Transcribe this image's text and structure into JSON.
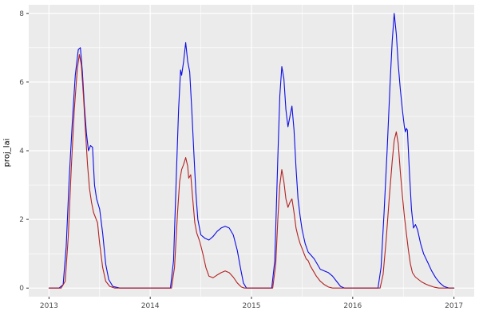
{
  "figure": {
    "kind": "ggplot-style time series plot",
    "background": "#FFFFFF"
  },
  "chart_data": {
    "type": "line",
    "title": "",
    "xlabel": "",
    "ylabel": "proj_lai",
    "xlim": [
      2012.8,
      2017.2
    ],
    "ylim": [
      -0.25,
      8.25
    ],
    "x_ticks": [
      2013,
      2014,
      2015,
      2016,
      2017
    ],
    "x_tick_labels": [
      "2013",
      "2014",
      "2015",
      "2016",
      "2017"
    ],
    "x_minor": [
      2013.5,
      2014.5,
      2015.5,
      2016.5
    ],
    "y_ticks": [
      0,
      2,
      4,
      6,
      8
    ],
    "y_tick_labels": [
      "0",
      "2",
      "4",
      "6",
      "8"
    ],
    "y_minor": [
      1,
      3,
      5,
      7
    ],
    "grid": true,
    "legend": "none",
    "theme": {
      "panel_bg": "#EBEBEB",
      "grid_color": "#FFFFFF",
      "tick_label_color": "#4D4D4D",
      "tick_mark_color": "#333333",
      "axis_title_color": "#000000"
    },
    "series": [
      {
        "name": "blue-series",
        "color": "#0B0BE6",
        "points": [
          [
            2013.0,
            0
          ],
          [
            2013.1,
            0
          ],
          [
            2013.14,
            0.1
          ],
          [
            2013.17,
            1.2
          ],
          [
            2013.2,
            3.2
          ],
          [
            2013.23,
            4.8
          ],
          [
            2013.26,
            6.2
          ],
          [
            2013.29,
            6.95
          ],
          [
            2013.31,
            7.0
          ],
          [
            2013.33,
            6.3
          ],
          [
            2013.35,
            5.3
          ],
          [
            2013.37,
            4.5
          ],
          [
            2013.39,
            4.0
          ],
          [
            2013.41,
            4.15
          ],
          [
            2013.43,
            4.1
          ],
          [
            2013.45,
            3.0
          ],
          [
            2013.47,
            2.6
          ],
          [
            2013.5,
            2.3
          ],
          [
            2013.53,
            1.6
          ],
          [
            2013.56,
            0.7
          ],
          [
            2013.59,
            0.25
          ],
          [
            2013.63,
            0.05
          ],
          [
            2013.7,
            0
          ],
          [
            2013.9,
            0
          ],
          [
            2014.1,
            0
          ],
          [
            2014.2,
            0
          ],
          [
            2014.23,
            0.8
          ],
          [
            2014.26,
            3.5
          ],
          [
            2014.28,
            5.2
          ],
          [
            2014.3,
            6.35
          ],
          [
            2014.31,
            6.2
          ],
          [
            2014.33,
            6.6
          ],
          [
            2014.35,
            7.15
          ],
          [
            2014.37,
            6.6
          ],
          [
            2014.39,
            6.3
          ],
          [
            2014.41,
            5.2
          ],
          [
            2014.43,
            4.0
          ],
          [
            2014.45,
            2.8
          ],
          [
            2014.47,
            2.0
          ],
          [
            2014.5,
            1.55
          ],
          [
            2014.54,
            1.45
          ],
          [
            2014.58,
            1.4
          ],
          [
            2014.62,
            1.5
          ],
          [
            2014.66,
            1.65
          ],
          [
            2014.7,
            1.75
          ],
          [
            2014.74,
            1.8
          ],
          [
            2014.78,
            1.75
          ],
          [
            2014.82,
            1.55
          ],
          [
            2014.86,
            1.1
          ],
          [
            2014.89,
            0.6
          ],
          [
            2014.92,
            0.15
          ],
          [
            2014.95,
            0
          ],
          [
            2015.1,
            0
          ],
          [
            2015.2,
            0
          ],
          [
            2015.23,
            0.8
          ],
          [
            2015.26,
            3.8
          ],
          [
            2015.28,
            5.6
          ],
          [
            2015.3,
            6.45
          ],
          [
            2015.32,
            6.1
          ],
          [
            2015.34,
            5.2
          ],
          [
            2015.36,
            4.7
          ],
          [
            2015.38,
            5.0
          ],
          [
            2015.4,
            5.3
          ],
          [
            2015.42,
            4.6
          ],
          [
            2015.44,
            3.5
          ],
          [
            2015.46,
            2.6
          ],
          [
            2015.48,
            2.1
          ],
          [
            2015.5,
            1.7
          ],
          [
            2015.53,
            1.3
          ],
          [
            2015.56,
            1.05
          ],
          [
            2015.59,
            0.95
          ],
          [
            2015.62,
            0.85
          ],
          [
            2015.65,
            0.7
          ],
          [
            2015.68,
            0.55
          ],
          [
            2015.72,
            0.5
          ],
          [
            2015.76,
            0.45
          ],
          [
            2015.8,
            0.35
          ],
          [
            2015.84,
            0.2
          ],
          [
            2015.88,
            0.05
          ],
          [
            2015.92,
            0
          ],
          [
            2016.1,
            0
          ],
          [
            2016.25,
            0
          ],
          [
            2016.28,
            0.6
          ],
          [
            2016.31,
            2.2
          ],
          [
            2016.34,
            4.0
          ],
          [
            2016.37,
            6.0
          ],
          [
            2016.39,
            7.2
          ],
          [
            2016.41,
            8.0
          ],
          [
            2016.43,
            7.4
          ],
          [
            2016.45,
            6.5
          ],
          [
            2016.47,
            5.8
          ],
          [
            2016.49,
            5.2
          ],
          [
            2016.51,
            4.7
          ],
          [
            2016.52,
            4.55
          ],
          [
            2016.53,
            4.65
          ],
          [
            2016.54,
            4.6
          ],
          [
            2016.56,
            3.4
          ],
          [
            2016.58,
            2.3
          ],
          [
            2016.6,
            1.75
          ],
          [
            2016.62,
            1.85
          ],
          [
            2016.64,
            1.7
          ],
          [
            2016.67,
            1.3
          ],
          [
            2016.7,
            1.0
          ],
          [
            2016.74,
            0.75
          ],
          [
            2016.78,
            0.5
          ],
          [
            2016.82,
            0.3
          ],
          [
            2016.86,
            0.15
          ],
          [
            2016.9,
            0.05
          ],
          [
            2016.95,
            0
          ],
          [
            2017.0,
            0
          ]
        ]
      },
      {
        "name": "red-series",
        "color": "#B22222",
        "points": [
          [
            2013.0,
            0
          ],
          [
            2013.12,
            0
          ],
          [
            2013.16,
            0.2
          ],
          [
            2013.19,
            1.5
          ],
          [
            2013.22,
            3.5
          ],
          [
            2013.25,
            5.2
          ],
          [
            2013.28,
            6.4
          ],
          [
            2013.3,
            6.8
          ],
          [
            2013.32,
            6.5
          ],
          [
            2013.34,
            5.6
          ],
          [
            2013.36,
            4.6
          ],
          [
            2013.38,
            3.6
          ],
          [
            2013.4,
            2.9
          ],
          [
            2013.42,
            2.5
          ],
          [
            2013.44,
            2.2
          ],
          [
            2013.46,
            2.05
          ],
          [
            2013.48,
            1.9
          ],
          [
            2013.5,
            1.3
          ],
          [
            2013.53,
            0.6
          ],
          [
            2013.56,
            0.2
          ],
          [
            2013.6,
            0.05
          ],
          [
            2013.65,
            0
          ],
          [
            2013.9,
            0
          ],
          [
            2014.1,
            0
          ],
          [
            2014.21,
            0
          ],
          [
            2014.24,
            0.6
          ],
          [
            2014.27,
            2.2
          ],
          [
            2014.29,
            3.1
          ],
          [
            2014.31,
            3.45
          ],
          [
            2014.33,
            3.6
          ],
          [
            2014.35,
            3.8
          ],
          [
            2014.37,
            3.55
          ],
          [
            2014.38,
            3.2
          ],
          [
            2014.4,
            3.3
          ],
          [
            2014.42,
            2.6
          ],
          [
            2014.44,
            1.9
          ],
          [
            2014.46,
            1.6
          ],
          [
            2014.49,
            1.35
          ],
          [
            2014.52,
            1.0
          ],
          [
            2014.55,
            0.6
          ],
          [
            2014.58,
            0.35
          ],
          [
            2014.62,
            0.3
          ],
          [
            2014.66,
            0.38
          ],
          [
            2014.7,
            0.45
          ],
          [
            2014.74,
            0.5
          ],
          [
            2014.78,
            0.45
          ],
          [
            2014.82,
            0.32
          ],
          [
            2014.86,
            0.15
          ],
          [
            2014.9,
            0.03
          ],
          [
            2014.93,
            0
          ],
          [
            2015.1,
            0
          ],
          [
            2015.21,
            0
          ],
          [
            2015.24,
            0.7
          ],
          [
            2015.26,
            2.0
          ],
          [
            2015.28,
            3.0
          ],
          [
            2015.3,
            3.45
          ],
          [
            2015.32,
            3.1
          ],
          [
            2015.34,
            2.6
          ],
          [
            2015.36,
            2.35
          ],
          [
            2015.38,
            2.5
          ],
          [
            2015.4,
            2.6
          ],
          [
            2015.42,
            2.2
          ],
          [
            2015.44,
            1.75
          ],
          [
            2015.46,
            1.5
          ],
          [
            2015.48,
            1.3
          ],
          [
            2015.5,
            1.15
          ],
          [
            2015.52,
            1.0
          ],
          [
            2015.54,
            0.85
          ],
          [
            2015.56,
            0.8
          ],
          [
            2015.58,
            0.65
          ],
          [
            2015.61,
            0.5
          ],
          [
            2015.64,
            0.35
          ],
          [
            2015.68,
            0.2
          ],
          [
            2015.72,
            0.1
          ],
          [
            2015.76,
            0.03
          ],
          [
            2015.8,
            0
          ],
          [
            2016.0,
            0
          ],
          [
            2016.27,
            0
          ],
          [
            2016.3,
            0.4
          ],
          [
            2016.33,
            1.4
          ],
          [
            2016.36,
            2.6
          ],
          [
            2016.39,
            3.7
          ],
          [
            2016.41,
            4.3
          ],
          [
            2016.43,
            4.55
          ],
          [
            2016.45,
            4.2
          ],
          [
            2016.47,
            3.4
          ],
          [
            2016.49,
            2.7
          ],
          [
            2016.51,
            2.1
          ],
          [
            2016.53,
            1.6
          ],
          [
            2016.55,
            1.1
          ],
          [
            2016.57,
            0.7
          ],
          [
            2016.59,
            0.45
          ],
          [
            2016.62,
            0.32
          ],
          [
            2016.65,
            0.25
          ],
          [
            2016.68,
            0.18
          ],
          [
            2016.72,
            0.12
          ],
          [
            2016.76,
            0.07
          ],
          [
            2016.8,
            0.03
          ],
          [
            2016.85,
            0
          ],
          [
            2017.0,
            0
          ]
        ]
      }
    ]
  }
}
